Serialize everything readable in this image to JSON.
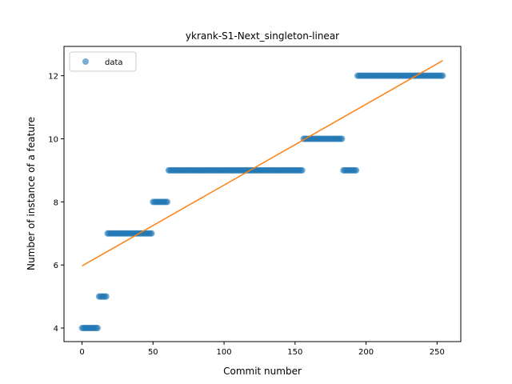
{
  "chart_data": {
    "type": "scatter",
    "title": "ykrank-S1-Next_singleton-linear",
    "xlabel": "Commit number",
    "ylabel": "Number of instance of a feature",
    "xlim": [
      -12.7,
      266.7
    ],
    "ylim": [
      3.57,
      12.93
    ],
    "xticks": [
      0,
      50,
      100,
      150,
      200,
      250
    ],
    "yticks": [
      4,
      6,
      8,
      10,
      12
    ],
    "grid": false,
    "legend": {
      "placement": "top-left",
      "entries": [
        "data"
      ]
    },
    "colors": {
      "points": "#1f77b4",
      "fit": "#ff7f0e"
    },
    "segments": [
      {
        "x_start": 0,
        "x_end": 11,
        "y": 4
      },
      {
        "x_start": 12,
        "x_end": 17,
        "y": 5
      },
      {
        "x_start": 18,
        "x_end": 49,
        "y": 7
      },
      {
        "x_start": 50,
        "x_end": 60,
        "y": 8
      },
      {
        "x_start": 61,
        "x_end": 155,
        "y": 9
      },
      {
        "x_start": 156,
        "x_end": 183,
        "y": 10
      },
      {
        "x_start": 184,
        "x_end": 193,
        "y": 9
      },
      {
        "x_start": 194,
        "x_end": 254,
        "y": 12
      }
    ],
    "fit_line": {
      "x": [
        0,
        254
      ],
      "y": [
        5.97,
        12.48
      ]
    }
  }
}
